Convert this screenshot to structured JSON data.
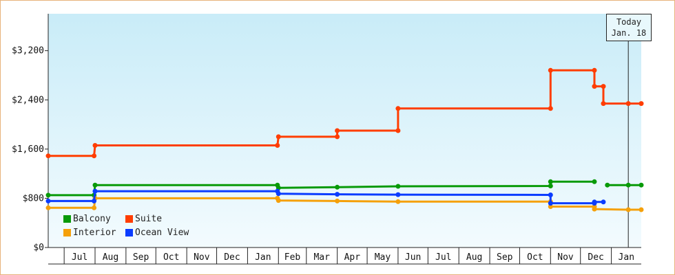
{
  "chart_data": {
    "type": "line",
    "step": true,
    "title": "",
    "xlabel": "",
    "ylabel": "",
    "ylim": [
      0,
      3800
    ],
    "yticks": [
      0,
      800,
      1600,
      2400,
      3200
    ],
    "ytick_labels": [
      "$0",
      "$800",
      "$1,600",
      "$2,400",
      "$3,200"
    ],
    "x_months": [
      "Jul",
      "Aug",
      "Sep",
      "Oct",
      "Nov",
      "Dec",
      "Jan",
      "Feb",
      "Mar",
      "Apr",
      "May",
      "Jun",
      "Jul",
      "Aug",
      "Sep",
      "Oct",
      "Nov",
      "Dec",
      "Jan"
    ],
    "x_start": "2021-06-15",
    "x_end": "2023-01-31",
    "today": {
      "date": "2023-01-18",
      "line1": "Today",
      "line2": "Jan. 18"
    },
    "grid": false,
    "legend_placement": "bottom-left",
    "series": [
      {
        "name": "Balcony",
        "color": "#089a08",
        "points": [
          {
            "date": "2021-06-15",
            "value": 850
          },
          {
            "date": "2021-07-31",
            "value": 850
          },
          {
            "date": "2021-08-01",
            "value": 1015
          },
          {
            "date": "2022-01-31",
            "value": 1015
          },
          {
            "date": "2022-02-01",
            "value": 970
          },
          {
            "date": "2022-04-01",
            "value": 980
          },
          {
            "date": "2022-06-01",
            "value": 995
          },
          {
            "date": "2022-11-01",
            "value": 1000
          },
          {
            "date": "2022-11-01",
            "value": 1070
          },
          {
            "date": "2022-12-15",
            "value": 1070
          },
          {
            "date": "2022-12-24",
            "value": null
          },
          {
            "date": "2022-12-28",
            "value": 1015
          },
          {
            "date": "2023-01-18",
            "value": 1015
          },
          {
            "date": "2023-01-31",
            "value": 1015
          }
        ]
      },
      {
        "name": "Suite",
        "color": "#ff3d00",
        "points": [
          {
            "date": "2021-06-15",
            "value": 1490
          },
          {
            "date": "2021-07-31",
            "value": 1490
          },
          {
            "date": "2021-08-01",
            "value": 1660
          },
          {
            "date": "2022-01-31",
            "value": 1660
          },
          {
            "date": "2022-02-01",
            "value": 1800
          },
          {
            "date": "2022-04-01",
            "value": 1800
          },
          {
            "date": "2022-04-01",
            "value": 1900
          },
          {
            "date": "2022-06-01",
            "value": 1900
          },
          {
            "date": "2022-06-01",
            "value": 2260
          },
          {
            "date": "2022-11-01",
            "value": 2260
          },
          {
            "date": "2022-11-01",
            "value": 2880
          },
          {
            "date": "2022-12-15",
            "value": 2880
          },
          {
            "date": "2022-12-15",
            "value": 2620
          },
          {
            "date": "2022-12-24",
            "value": 2620
          },
          {
            "date": "2022-12-24",
            "value": 2340
          },
          {
            "date": "2023-01-18",
            "value": 2340
          },
          {
            "date": "2023-01-31",
            "value": 2340
          }
        ]
      },
      {
        "name": "Interior",
        "color": "#f5a00a",
        "points": [
          {
            "date": "2021-06-15",
            "value": 645
          },
          {
            "date": "2021-07-31",
            "value": 645
          },
          {
            "date": "2021-08-01",
            "value": 800
          },
          {
            "date": "2022-01-31",
            "value": 800
          },
          {
            "date": "2022-02-01",
            "value": 765
          },
          {
            "date": "2022-04-01",
            "value": 755
          },
          {
            "date": "2022-06-01",
            "value": 745
          },
          {
            "date": "2022-11-01",
            "value": 745
          },
          {
            "date": "2022-11-01",
            "value": 665
          },
          {
            "date": "2022-12-15",
            "value": 665
          },
          {
            "date": "2022-12-15",
            "value": 625
          },
          {
            "date": "2023-01-18",
            "value": 615
          },
          {
            "date": "2023-01-31",
            "value": 615
          }
        ]
      },
      {
        "name": "Ocean View",
        "color": "#0a3cff",
        "points": [
          {
            "date": "2021-06-15",
            "value": 755
          },
          {
            "date": "2021-07-31",
            "value": 755
          },
          {
            "date": "2021-08-01",
            "value": 915
          },
          {
            "date": "2022-01-31",
            "value": 915
          },
          {
            "date": "2022-02-01",
            "value": 875
          },
          {
            "date": "2022-04-01",
            "value": 865
          },
          {
            "date": "2022-06-01",
            "value": 860
          },
          {
            "date": "2022-11-01",
            "value": 855
          },
          {
            "date": "2022-11-01",
            "value": 720
          },
          {
            "date": "2022-12-15",
            "value": 720
          },
          {
            "date": "2022-12-15",
            "value": 740
          },
          {
            "date": "2022-12-24",
            "value": 740
          }
        ]
      }
    ]
  }
}
